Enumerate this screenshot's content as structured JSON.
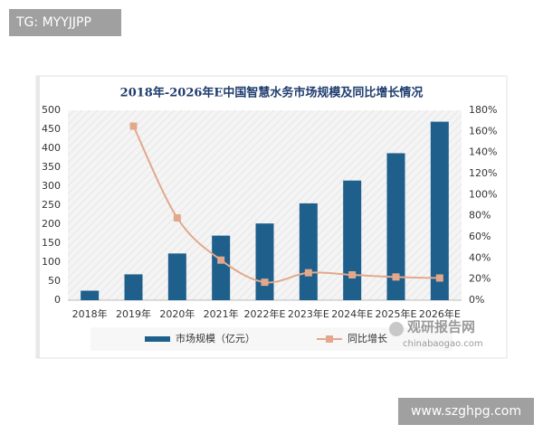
{
  "chart_data": {
    "type": "bar_line",
    "title": "2018年-2026年E中国智慧水务市场规模及同比增长情况",
    "categories": [
      "2018年",
      "2019年",
      "2020年",
      "2021年",
      "2022年E",
      "2023年E",
      "2024年E",
      "2025年E",
      "2026年E"
    ],
    "series": [
      {
        "name": "市场规模（亿元）",
        "type": "bar",
        "color": "#1f5f8b",
        "values": [
          25,
          68,
          123,
          170,
          202,
          255,
          315,
          387,
          470
        ]
      },
      {
        "name": "同比增长",
        "type": "line",
        "axis": "y2",
        "color": "#e3a88c",
        "values": [
          null,
          165,
          78,
          38,
          17,
          26,
          24,
          22,
          21
        ]
      }
    ],
    "ylim": [
      0,
      500
    ],
    "yticks": [
      0,
      50,
      100,
      150,
      200,
      250,
      300,
      350,
      400,
      450,
      500
    ],
    "y2lim": [
      0,
      180
    ],
    "y2ticks": [
      {
        "value": 0,
        "label": "0%"
      },
      {
        "value": 20,
        "label": "20%"
      },
      {
        "value": 40,
        "label": "40%"
      },
      {
        "value": 60,
        "label": "60%"
      },
      {
        "value": 80,
        "label": "80%"
      },
      {
        "value": 100,
        "label": "100%"
      },
      {
        "value": 120,
        "label": "120%"
      },
      {
        "value": 140,
        "label": "140%"
      },
      {
        "value": 160,
        "label": "160%"
      },
      {
        "value": 180,
        "label": "180%"
      }
    ],
    "grid": false,
    "legend": "bottom"
  },
  "watermarks": {
    "top_left": "TG: MYYJJPP",
    "bottom_right": "www.szghpg.com",
    "logo": "观研报告网",
    "logo_url": "chinabaogao.com"
  }
}
